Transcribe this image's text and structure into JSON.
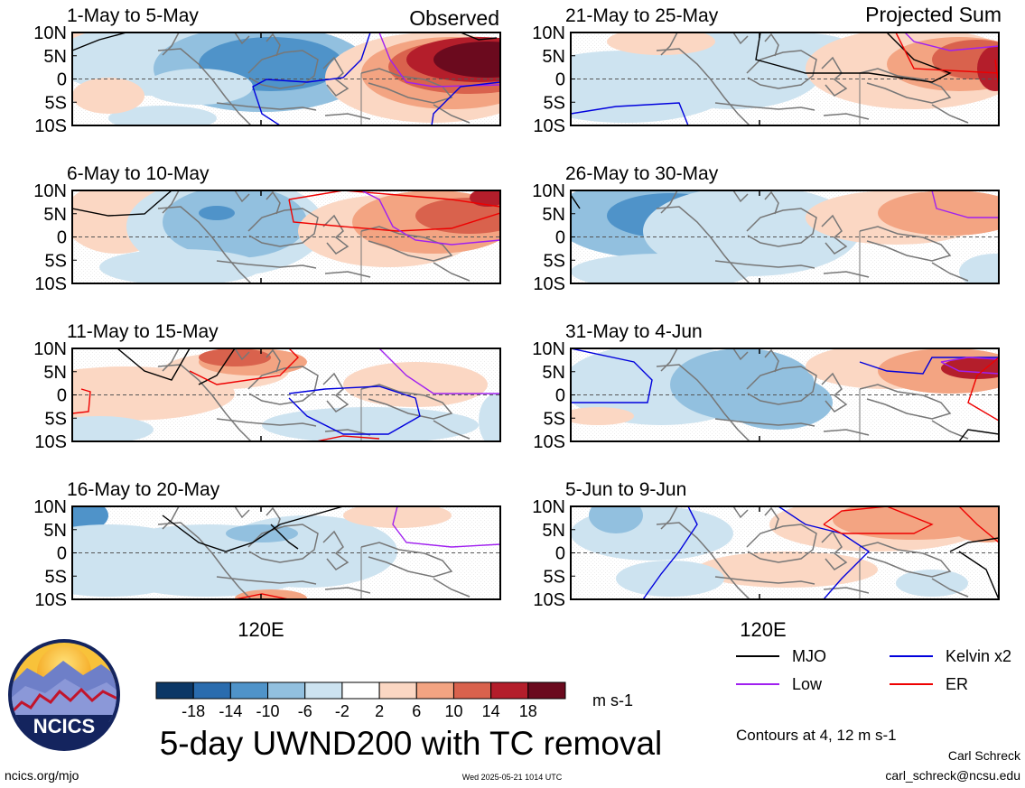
{
  "header": {
    "left_label": "Observed",
    "right_label": "Projected Sum"
  },
  "panels": [
    {
      "title": "1-May to 5-May"
    },
    {
      "title": "6-May to 10-May"
    },
    {
      "title": "11-May to 15-May"
    },
    {
      "title": "16-May to 20-May"
    },
    {
      "title": "21-May to 25-May"
    },
    {
      "title": "26-May to 30-May"
    },
    {
      "title": "31-May to 4-Jun"
    },
    {
      "title": "5-Jun to 9-Jun"
    }
  ],
  "axes": {
    "y_ticks": [
      "10N",
      "5N",
      "0",
      "5S",
      "10S"
    ],
    "x_label": "120E"
  },
  "colorbar": {
    "ticks": [
      "-18",
      "-14",
      "-10",
      "-6",
      "-2",
      "2",
      "6",
      "10",
      "14",
      "18"
    ],
    "colors": [
      "#0b3766",
      "#2a6cae",
      "#4f93c9",
      "#92c0df",
      "#cde3f0",
      "#ffffff",
      "#fbd7c3",
      "#f3a482",
      "#d9624d",
      "#b41e2b",
      "#6b0a1e"
    ],
    "unit": "m s-1"
  },
  "legend": {
    "items": [
      {
        "label": "MJO",
        "color": "#000000"
      },
      {
        "label": "Kelvin x2",
        "color": "#0000dd"
      },
      {
        "label": "Low",
        "color": "#a020f0"
      },
      {
        "label": "ER",
        "color": "#ee0000"
      }
    ],
    "contours_note": "Contours at 4, 12 m s-1"
  },
  "footer": {
    "title": "5-day UWND200 with TC removal",
    "site": "ncics.org/mjo",
    "timestamp": "Wed 2025-05-21 1014 UTC",
    "author": "Carl Schreck",
    "email": "carl_schreck@ncsu.edu",
    "logo_text": "NCICS"
  },
  "chart_data": {
    "type": "heatmap",
    "variable": "5-day UWND200 with TC removal",
    "unit": "m s-1",
    "levels": [
      -18,
      -14,
      -10,
      -6,
      -2,
      2,
      6,
      10,
      14,
      18
    ],
    "latitude_ticks": [
      "10N",
      "5N",
      "0",
      "5S",
      "10S"
    ],
    "longitude_tick": "120E",
    "contour_levels": [
      4,
      12
    ],
    "contour_series": [
      "MJO",
      "Kelvin x2",
      "Low",
      "ER"
    ],
    "periods": [
      {
        "title": "1-May to 5-May",
        "group": "Observed",
        "dominant": "easterlies west of 125E, westerlies up to 18+ m s-1 north of equator east of 125E"
      },
      {
        "title": "6-May to 10-May",
        "group": "Observed",
        "dominant": "easterlies -6 to -10 over 110-125E, westerlies 6-14 east of 130E"
      },
      {
        "title": "11-May to 15-May",
        "group": "Observed",
        "dominant": "weak westerlies 2-10 north, weak easterlies south"
      },
      {
        "title": "16-May to 20-May",
        "group": "Observed",
        "dominant": "weak easterlies -2 to -10"
      },
      {
        "title": "21-May to 25-May",
        "group": "Projected Sum",
        "dominant": "easterlies west, westerlies 6-14 east"
      },
      {
        "title": "26-May to 30-May",
        "group": "Projected Sum",
        "dominant": "easterlies -6 to -14 over maritime continent, westerlies 6-10 northeast"
      },
      {
        "title": "31-May to 4-Jun",
        "group": "Projected Sum",
        "dominant": "easterlies -2 to -10 west, westerlies 6-14 northeast"
      },
      {
        "title": "5-Jun to 9-Jun",
        "group": "Projected Sum",
        "dominant": "westerlies 6-14 north-east, weak westerlies south"
      }
    ]
  }
}
